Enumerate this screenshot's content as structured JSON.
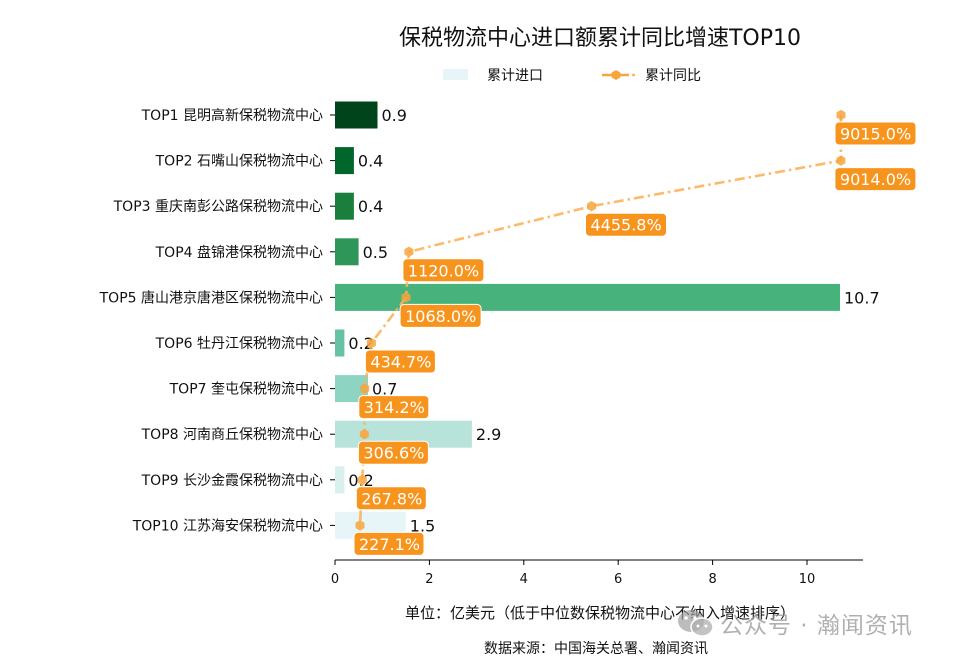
{
  "chart_data": {
    "type": "bar",
    "orientation": "horizontal",
    "title": "保税物流中心进口额累计同比增速TOP10",
    "categories": [
      "TOP1 昆明高新保税物流中心",
      "TOP2 石嘴山保税物流中心",
      "TOP3 重庆南彭公路保税物流中心",
      "TOP4 盘锦港保税物流中心",
      "TOP5 唐山港京唐港区保税物流中心",
      "TOP6 牡丹江保税物流中心",
      "TOP7 奎屯保税物流中心",
      "TOP8 河南商丘保税物流中心",
      "TOP9 长沙金霞保税物流中心",
      "TOP10 江苏海安保税物流中心"
    ],
    "series": [
      {
        "name": "累计进口",
        "type": "bar",
        "values": [
          0.9,
          0.4,
          0.4,
          0.5,
          10.7,
          0.2,
          0.7,
          2.9,
          0.2,
          1.5
        ],
        "labels": [
          "0.9",
          "0.4",
          "0.4",
          "0.5",
          "10.7",
          "0.2",
          "0.7",
          "2.9",
          "0.2",
          "1.5"
        ],
        "colors": [
          "#00441b",
          "#00662b",
          "#1a7f3c",
          "#2e9658",
          "#48b27d",
          "#66c2a4",
          "#8ed4c2",
          "#b8e3da",
          "#d9f0ed",
          "#e7f5f9"
        ]
      },
      {
        "name": "累计同比",
        "type": "line",
        "values": [
          9015.0,
          9014.0,
          4455.8,
          1120.0,
          1068.0,
          434.7,
          314.2,
          306.6,
          267.8,
          227.1
        ],
        "labels": [
          "9015.0%",
          "9014.0%",
          "4455.8%",
          "1120.0%",
          "1068.0%",
          "434.7%",
          "314.2%",
          "306.6%",
          "267.8%",
          "227.1%"
        ],
        "color": "#f7941d",
        "line_style": "dash-dot",
        "marker": "hexagon"
      }
    ],
    "xticks": [
      "0",
      "2",
      "4",
      "6",
      "8",
      "10"
    ],
    "xlim": [
      0,
      11.2
    ],
    "xlabel": "单位：亿美元（低于中位数保税物流中心不纳入增速排序）",
    "ylabel": "",
    "grid": false,
    "legend": {
      "position": "top-center",
      "entries": [
        "累计进口",
        "累计同比"
      ]
    }
  },
  "footer": {
    "source": "数据来源：中国海关总署、瀚闻资讯"
  },
  "watermark": {
    "text": "公众号 · 瀚闻资讯",
    "icon": "wechat-icon"
  }
}
